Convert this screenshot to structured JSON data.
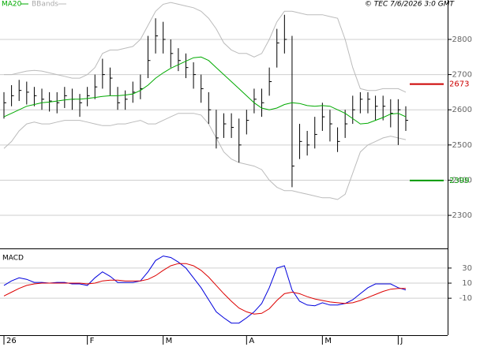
{
  "chart_data": [
    {
      "type": "hlc",
      "copyright": "© TEC 7/6/2026 3:0 GMT",
      "categories": [
        "26",
        null,
        null,
        null,
        null,
        null,
        null,
        null,
        null,
        null,
        null,
        "F",
        null,
        null,
        null,
        null,
        null,
        null,
        null,
        null,
        null,
        "M",
        null,
        null,
        null,
        null,
        null,
        null,
        null,
        null,
        null,
        null,
        "A",
        null,
        null,
        null,
        null,
        null,
        null,
        null,
        null,
        null,
        "M",
        null,
        null,
        null,
        null,
        null,
        null,
        null,
        null,
        null,
        "J",
        null
      ],
      "high": [
        2650,
        2670,
        2685,
        2680,
        2665,
        2660,
        2650,
        2650,
        2665,
        2660,
        2645,
        2665,
        2700,
        2745,
        2720,
        2665,
        2655,
        2680,
        2700,
        2810,
        2860,
        2850,
        2800,
        2775,
        2760,
        2735,
        2700,
        2650,
        2600,
        2590,
        2590,
        2575,
        2600,
        2660,
        2660,
        2720,
        2830,
        2870,
        2810,
        2560,
        2540,
        2580,
        2620,
        2600,
        2550,
        2600,
        2640,
        2650,
        2650,
        2640,
        2640,
        2630,
        2630,
        2610
      ],
      "low": [
        2575,
        2610,
        2625,
        2615,
        2610,
        2600,
        2595,
        2590,
        2605,
        2600,
        2580,
        2610,
        2630,
        2660,
        2640,
        2600,
        2600,
        2620,
        2630,
        2690,
        2760,
        2760,
        2720,
        2710,
        2690,
        2660,
        2620,
        2560,
        2490,
        2520,
        2520,
        2450,
        2530,
        2590,
        2580,
        2640,
        2720,
        2760,
        2380,
        2460,
        2470,
        2490,
        2540,
        2510,
        2480,
        2520,
        2560,
        2590,
        2590,
        2570,
        2570,
        2550,
        2500,
        2540
      ],
      "close": [
        2620,
        2640,
        2655,
        2650,
        2640,
        2630,
        2625,
        2620,
        2640,
        2630,
        2620,
        2640,
        2665,
        2700,
        2690,
        2620,
        2630,
        2650,
        2660,
        2740,
        2810,
        2800,
        2760,
        2740,
        2720,
        2700,
        2660,
        2600,
        2520,
        2560,
        2550,
        2500,
        2570,
        2630,
        2620,
        2680,
        2790,
        2800,
        2440,
        2510,
        2500,
        2530,
        2580,
        2560,
        2510,
        2560,
        2600,
        2630,
        2630,
        2610,
        2610,
        2590,
        2600,
        2570
      ],
      "color": "#000000",
      "series": [
        {
          "name": "MA20",
          "color": "#00aa00",
          "values": [
            2580,
            2590,
            2600,
            2610,
            2615,
            2620,
            2622,
            2625,
            2628,
            2630,
            2630,
            2632,
            2635,
            2638,
            2640,
            2640,
            2642,
            2645,
            2655,
            2670,
            2690,
            2705,
            2718,
            2728,
            2738,
            2748,
            2750,
            2740,
            2720,
            2700,
            2680,
            2660,
            2640,
            2620,
            2605,
            2600,
            2605,
            2615,
            2620,
            2618,
            2612,
            2610,
            2612,
            2610,
            2600,
            2590,
            2575,
            2560,
            2562,
            2570,
            2578,
            2588,
            2590,
            2580
          ]
        }
      ],
      "bands": {
        "name": "BBands",
        "color": "#bbbbbb",
        "upper": [
          2700,
          2700,
          2705,
          2710,
          2712,
          2710,
          2705,
          2700,
          2695,
          2690,
          2690,
          2700,
          2720,
          2760,
          2770,
          2770,
          2775,
          2780,
          2800,
          2840,
          2880,
          2900,
          2905,
          2900,
          2895,
          2890,
          2880,
          2860,
          2830,
          2790,
          2770,
          2760,
          2760,
          2750,
          2760,
          2800,
          2850,
          2880,
          2880,
          2875,
          2870,
          2870,
          2870,
          2865,
          2860,
          2800,
          2720,
          2660,
          2655,
          2655,
          2660,
          2660,
          2660,
          2650
        ],
        "lower": [
          2490,
          2510,
          2540,
          2560,
          2565,
          2560,
          2560,
          2565,
          2570,
          2570,
          2570,
          2565,
          2560,
          2555,
          2555,
          2560,
          2560,
          2565,
          2570,
          2560,
          2560,
          2570,
          2580,
          2590,
          2590,
          2590,
          2585,
          2560,
          2520,
          2480,
          2460,
          2450,
          2445,
          2440,
          2430,
          2400,
          2380,
          2370,
          2370,
          2365,
          2360,
          2355,
          2350,
          2350,
          2345,
          2360,
          2420,
          2480,
          2500,
          2510,
          2520,
          2525,
          2520,
          2515
        ]
      },
      "annotations": [
        {
          "value": 2673,
          "color": "#cc0000"
        },
        {
          "value": 2399,
          "color": "#009900"
        }
      ],
      "ylim": [
        2206,
        2912
      ],
      "yticks": [
        2300,
        2400,
        2500,
        2600,
        2700,
        2800
      ],
      "grid": true
    },
    {
      "type": "line",
      "title": "MACD",
      "series": [
        {
          "color": "#0000dd",
          "values": [
            7,
            13,
            17,
            15,
            11,
            11,
            10,
            11,
            11,
            9,
            9,
            7,
            17,
            25,
            19,
            11,
            11,
            11,
            13,
            25,
            40,
            46,
            44,
            38,
            30,
            17,
            4,
            -12,
            -28,
            -36,
            -43,
            -43,
            -36,
            -28,
            -17,
            4,
            30,
            33,
            1,
            -14,
            -19,
            -20,
            -16,
            -19,
            -19,
            -17,
            -12,
            -4,
            4,
            9,
            9,
            9,
            4,
            1
          ]
        },
        {
          "color": "#dd0000",
          "values": [
            -7,
            -2,
            3,
            7,
            9,
            10,
            10,
            10,
            10,
            10,
            10,
            9,
            10,
            13,
            14,
            14,
            13,
            13,
            13,
            15,
            20,
            27,
            33,
            36,
            36,
            33,
            27,
            18,
            7,
            -4,
            -14,
            -23,
            -28,
            -31,
            -30,
            -24,
            -13,
            -4,
            -2,
            -4,
            -8,
            -11,
            -13,
            -15,
            -16,
            -17,
            -16,
            -13,
            -9,
            -5,
            -1,
            2,
            3,
            3
          ]
        }
      ],
      "ylim": [
        -59,
        55
      ],
      "yticks": [
        30,
        10,
        -10
      ],
      "grid": true
    }
  ]
}
